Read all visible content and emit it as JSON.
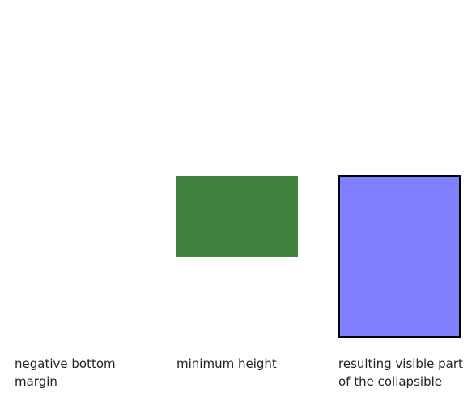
{
  "colors": {
    "minimum_height_box": "#418241",
    "visible_part_box": "#8080ff",
    "border": "#000000"
  },
  "captions": {
    "negative_bottom_margin": "negative bottom margin",
    "minimum_height": "minimum height",
    "visible_part": "resulting visible part of the collapsible"
  }
}
